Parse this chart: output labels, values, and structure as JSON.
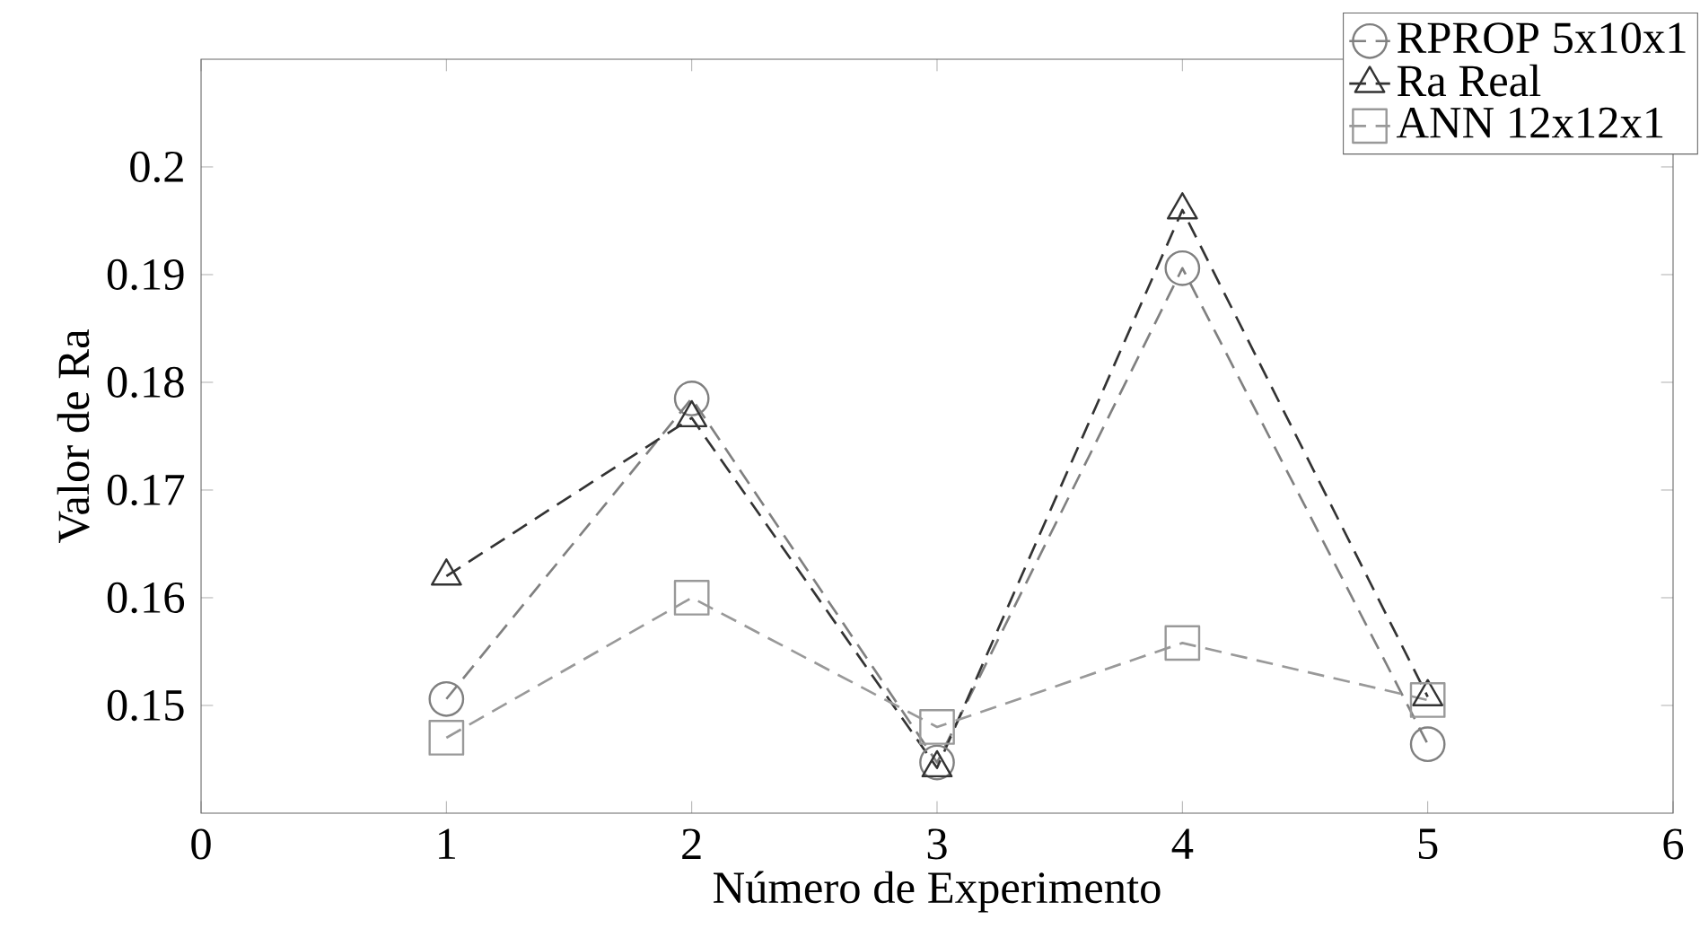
{
  "chart_data": {
    "type": "line",
    "xlabel": "Número de Experimento",
    "ylabel": "Valor de Ra",
    "x": [
      1,
      2,
      3,
      4,
      5
    ],
    "series": [
      {
        "name": "RPROP 5x10x1",
        "color": "#808080",
        "marker": "circle",
        "values": [
          0.1506,
          0.1785,
          0.1447,
          0.1906,
          0.1464
        ]
      },
      {
        "name": "Ra Real",
        "color": "#333333",
        "marker": "triangle",
        "values": [
          0.162,
          0.1767,
          0.1442,
          0.196,
          0.1508
        ]
      },
      {
        "name": "ANN 12x12x1",
        "color": "#999999",
        "marker": "square",
        "values": [
          0.147,
          0.16,
          0.148,
          0.1558,
          0.1505
        ]
      }
    ],
    "xlim": [
      0,
      6
    ],
    "xticks": [
      0,
      1,
      2,
      3,
      4,
      5,
      6
    ],
    "ylim": [
      0.14,
      0.21
    ],
    "yticks": [
      0.15,
      0.16,
      0.17,
      0.18,
      0.19,
      0.2
    ],
    "grid": false,
    "legend": "top right",
    "line_style": "dashed"
  }
}
